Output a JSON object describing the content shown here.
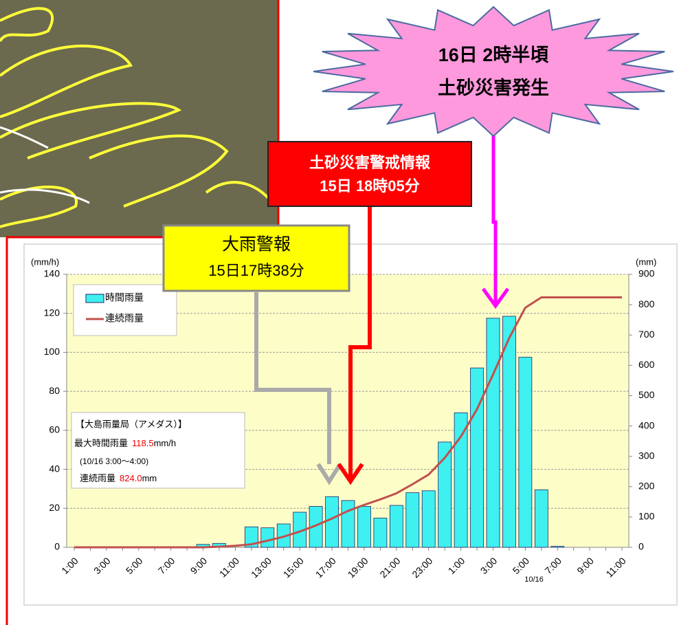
{
  "chart_data": {
    "type": "bar",
    "y_label": "(mm/h)",
    "y2_label": "(mm)",
    "categories": [
      "1:00",
      null,
      "3:00",
      null,
      "5:00",
      null,
      "7:00",
      null,
      "9:00",
      null,
      "11:00",
      null,
      "13:00",
      null,
      "15:00",
      null,
      "17:00",
      null,
      "19:00",
      null,
      "21:00",
      null,
      "23:00",
      null,
      "1:00",
      null,
      "3:00",
      null,
      "5:00",
      null,
      "7:00",
      null,
      "9:00",
      null,
      "11:00"
    ],
    "x_sublabel": "10/16",
    "series": [
      {
        "name": "時間雨量",
        "type": "bar",
        "color": "#3ff0f0",
        "values": [
          0,
          0,
          0,
          0,
          0,
          0,
          0,
          0,
          1.5,
          2,
          0,
          10.5,
          10,
          12,
          18,
          21,
          26,
          24,
          21,
          15,
          21.5,
          28,
          29,
          54,
          69,
          92,
          117.5,
          118.5,
          97.5,
          29.5,
          0.5,
          0,
          0,
          0,
          0
        ]
      },
      {
        "name": "連続雨量",
        "type": "line",
        "axis": "y2",
        "color": "#c0504d",
        "values": [
          0,
          0,
          0,
          0,
          0,
          0,
          0,
          0,
          0,
          2,
          5,
          10,
          22,
          35,
          52,
          72,
          95,
          120,
          140,
          158,
          178,
          208,
          240,
          295,
          365,
          455,
          570,
          690,
          790,
          824,
          824,
          824,
          824,
          824,
          824
        ]
      }
    ],
    "ylim": [
      0,
      140
    ],
    "yticks": [
      0,
      20,
      40,
      60,
      80,
      100,
      120,
      140
    ],
    "y2lim": [
      0,
      900
    ],
    "y2ticks": [
      0,
      100,
      200,
      300,
      400,
      500,
      600,
      700,
      800,
      900
    ],
    "grid": true,
    "legend": "upper left",
    "info": {
      "title": "【大島雨量局（アメダス）】",
      "max_label": "最大時間雨量",
      "max_value": "118.5",
      "max_unit": "mm/h",
      "period": "(10/16  3:00〜4:00)",
      "total_label": "連続雨量",
      "total_value": "824.0",
      "total_unit": "mm"
    },
    "annotations": [
      {
        "lines": [
          "大雨警報",
          "15日17時38分"
        ]
      },
      {
        "lines": [
          "土砂災害警戒情報",
          "15日 18時05分"
        ]
      },
      {
        "lines": [
          "16日 2時半頃",
          "土砂災害発生"
        ]
      }
    ]
  }
}
